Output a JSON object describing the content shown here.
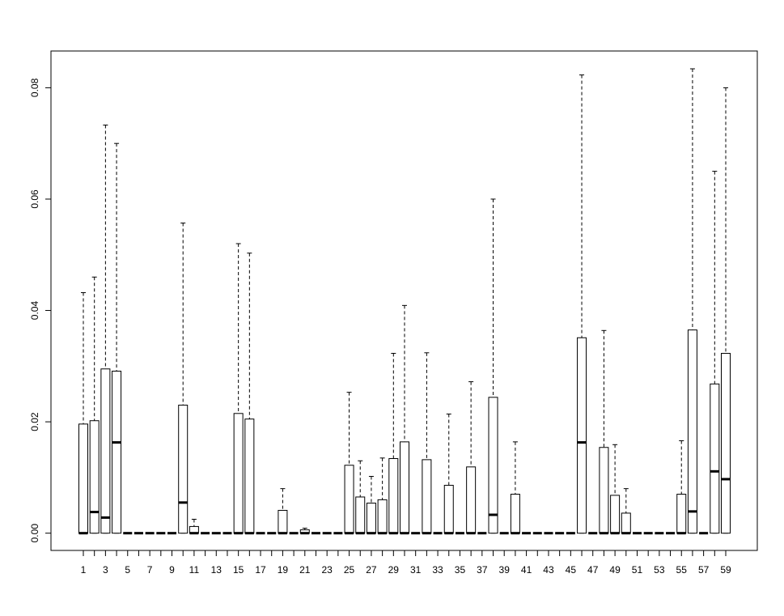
{
  "chart_data": {
    "type": "boxplot",
    "categories": [
      "1",
      null,
      "3",
      null,
      "5",
      null,
      "7",
      null,
      "9",
      null,
      "11",
      null,
      "13",
      null,
      "15",
      null,
      "17",
      null,
      "19",
      null,
      "21",
      null,
      "23",
      null,
      "25",
      null,
      "27",
      null,
      "29",
      null,
      "31",
      null,
      "33",
      null,
      "35",
      null,
      "37",
      null,
      "39",
      null,
      "41",
      null,
      "43",
      null,
      "45",
      null,
      "47",
      null,
      "49",
      null,
      "51",
      null,
      "53",
      null,
      "55",
      null,
      "57",
      null,
      "59"
    ],
    "min": [
      0,
      0,
      0,
      0,
      0,
      0,
      0,
      0,
      0,
      0,
      0,
      0,
      0,
      0,
      0,
      0,
      0,
      0,
      0,
      0,
      0,
      0,
      0,
      0,
      0,
      0,
      0,
      0,
      0,
      0,
      0,
      0,
      0,
      0,
      0,
      0,
      0,
      0,
      0,
      0,
      0,
      0,
      0,
      0,
      0,
      0,
      0,
      0,
      0,
      0,
      0,
      0,
      0,
      0,
      0,
      0,
      0,
      0,
      0
    ],
    "q1": [
      0,
      0,
      0,
      0,
      0,
      0,
      0,
      0,
      0,
      0,
      0,
      0,
      0,
      0,
      0,
      0,
      0,
      0,
      0,
      0,
      0,
      0,
      0,
      0,
      0,
      0,
      0,
      0,
      0,
      0,
      0,
      0,
      0,
      0,
      0,
      0,
      0,
      0,
      0,
      0,
      0,
      0,
      0,
      0,
      0,
      0,
      0,
      0,
      0,
      0,
      0,
      0,
      0,
      0,
      0,
      0,
      0,
      0,
      0
    ],
    "median": [
      0,
      0.0038,
      0.0028,
      0.0163,
      0,
      0,
      0,
      0,
      0,
      0.0055,
      0,
      0,
      0,
      0,
      0,
      0,
      0,
      0,
      0,
      0,
      0,
      0,
      0,
      0,
      0,
      0,
      0,
      0,
      0,
      0,
      0,
      0,
      0,
      0,
      0,
      0,
      0,
      0.0033,
      0,
      0,
      0,
      0,
      0,
      0,
      0,
      0.0163,
      0,
      0,
      0,
      0,
      0,
      0,
      0,
      0,
      0,
      0.0039,
      0,
      0.0111,
      0.0097
    ],
    "q3": [
      0.0196,
      0.0202,
      0.0295,
      0.0291,
      0,
      0,
      0,
      0,
      0,
      0.023,
      0.0012,
      0,
      0,
      0,
      0.0215,
      0.0205,
      0,
      0,
      0.0041,
      0,
      0.0006,
      0,
      0,
      0,
      0.0122,
      0.0065,
      0.0054,
      0.006,
      0.0134,
      0.0164,
      0,
      0.0132,
      0,
      0.0086,
      0,
      0.0119,
      0,
      0.0244,
      0,
      0.007,
      0,
      0,
      0,
      0,
      0,
      0.0351,
      0,
      0.0154,
      0.0068,
      0.0036,
      0,
      0,
      0,
      0,
      0.007,
      0.0365,
      0,
      0.0268,
      0.0323
    ],
    "max": [
      0.0432,
      0.046,
      0.0733,
      0.07,
      0,
      0,
      0,
      0,
      0,
      0.0557,
      0.0025,
      0,
      0,
      0,
      0.052,
      0.0503,
      0,
      0,
      0.008,
      0,
      0.0009,
      0,
      0,
      0,
      0.0253,
      0.013,
      0.0102,
      0.0135,
      0.0323,
      0.0409,
      0,
      0.0324,
      0,
      0.0214,
      0,
      0.0272,
      0,
      0.06,
      0,
      0.0164,
      0,
      0,
      0,
      0,
      0,
      0.0823,
      0,
      0.0364,
      0.0159,
      0.008,
      0,
      0,
      0,
      0,
      0.0166,
      0.0834,
      0,
      0.065,
      0.08
    ],
    "ylim": [
      -0.0031,
      0.0866
    ],
    "yticks": [
      {
        "value": 0,
        "label": "0.00"
      },
      {
        "value": 0.02,
        "label": "0.02"
      },
      {
        "value": 0.04,
        "label": "0.04"
      },
      {
        "value": 0.06,
        "label": "0.06"
      },
      {
        "value": 0.08,
        "label": "0.08"
      }
    ]
  }
}
